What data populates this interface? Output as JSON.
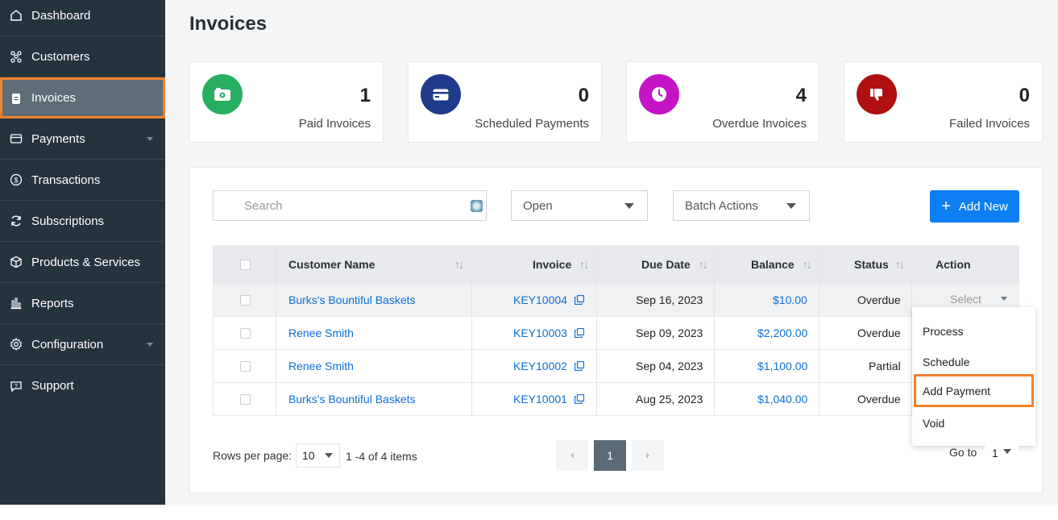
{
  "sidebar": {
    "items": [
      {
        "label": "Dashboard",
        "icon": "home-icon"
      },
      {
        "label": "Customers",
        "icon": "customers-icon"
      },
      {
        "label": "Invoices",
        "icon": "invoice-icon"
      },
      {
        "label": "Payments",
        "icon": "card-icon"
      },
      {
        "label": "Transactions",
        "icon": "dollar-icon"
      },
      {
        "label": "Subscriptions",
        "icon": "refresh-icon"
      },
      {
        "label": "Products & Services",
        "icon": "box-icon"
      },
      {
        "label": "Reports",
        "icon": "chart-icon"
      },
      {
        "label": "Configuration",
        "icon": "gear-icon"
      },
      {
        "label": "Support",
        "icon": "chat-icon"
      }
    ],
    "active": "Invoices"
  },
  "page": {
    "title": "Invoices"
  },
  "stats": [
    {
      "count": "1",
      "label": "Paid Invoices",
      "color": "#27ae60",
      "icon": "camera-icon"
    },
    {
      "count": "0",
      "label": "Scheduled Payments",
      "color": "#1e3a8a",
      "icon": "card-icon"
    },
    {
      "count": "4",
      "label": "Overdue Invoices",
      "color": "#c514c5",
      "icon": "clock-icon"
    },
    {
      "count": "0",
      "label": "Failed Invoices",
      "color": "#b01010",
      "icon": "thumbs-down-icon"
    }
  ],
  "toolbar": {
    "search_placeholder": "Search",
    "status_filter": "Open",
    "batch_actions": "Batch Actions",
    "add_new": "Add New"
  },
  "table": {
    "headers": [
      "Customer Name",
      "Invoice",
      "Due Date",
      "Balance",
      "Status",
      "Action"
    ],
    "rows": [
      {
        "customer": "Burks's Bountiful Baskets",
        "invoice": "KEY10004",
        "due": "Sep 16, 2023",
        "balance": "$10.00",
        "status": "Overdue"
      },
      {
        "customer": "Renee Smith",
        "invoice": "KEY10003",
        "due": "Sep 09, 2023",
        "balance": "$2,200.00",
        "status": "Overdue"
      },
      {
        "customer": "Renee Smith",
        "invoice": "KEY10002",
        "due": "Sep 04, 2023",
        "balance": "$1,100.00",
        "status": "Partial"
      },
      {
        "customer": "Burks's Bountiful Baskets",
        "invoice": "KEY10001",
        "due": "Aug 25, 2023",
        "balance": "$1,040.00",
        "status": "Overdue"
      }
    ],
    "action_placeholder": "Select"
  },
  "action_menu": {
    "items": [
      "Process",
      "Schedule",
      "Add Payment",
      "Void"
    ],
    "highlighted": "Add Payment"
  },
  "pagination": {
    "rows_per_page_label": "Rows per page:",
    "rows_per_page": "10",
    "range": "1 -4 of 4  items",
    "current_page": "1",
    "goto_label": "Go to",
    "goto_value": "1"
  }
}
